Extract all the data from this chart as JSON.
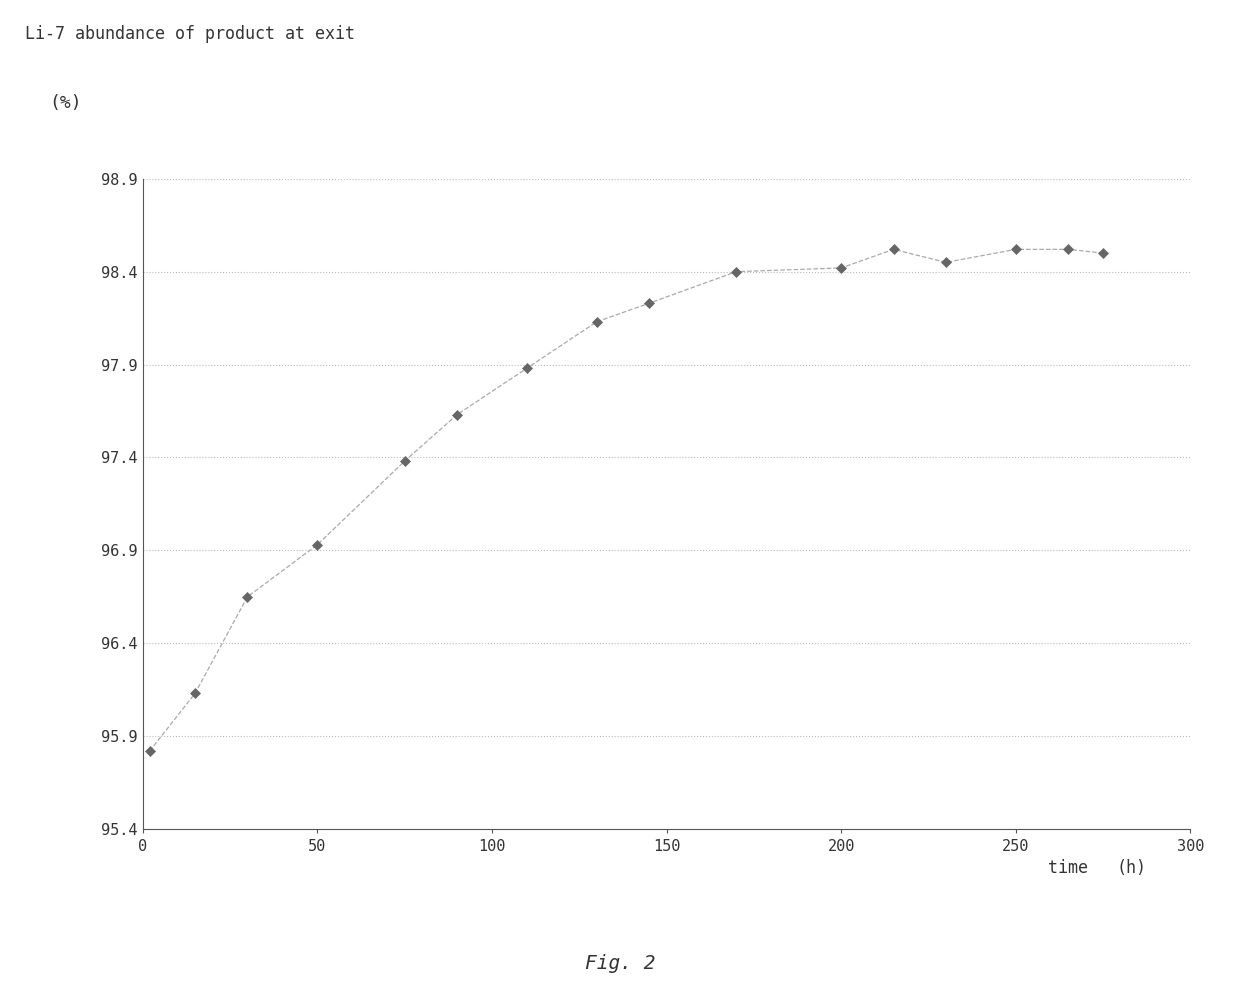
{
  "title": "Li-7 abundance of product at exit",
  "ylabel": "(%)",
  "xlabel_part1": "time",
  "xlabel_part2": "(h)",
  "x_data": [
    2,
    15,
    30,
    50,
    75,
    90,
    110,
    130,
    145,
    170,
    200,
    215,
    230,
    250,
    265,
    275
  ],
  "y_data": [
    95.82,
    96.13,
    96.65,
    96.93,
    97.38,
    97.63,
    97.88,
    98.13,
    98.23,
    98.4,
    98.42,
    98.52,
    98.45,
    98.52,
    98.52,
    98.5
  ],
  "xlim": [
    0,
    300
  ],
  "ylim": [
    95.4,
    98.9
  ],
  "yticks": [
    95.4,
    95.9,
    96.4,
    96.9,
    97.4,
    97.9,
    98.4,
    98.9
  ],
  "xticks": [
    0,
    50,
    100,
    150,
    200,
    250,
    300
  ],
  "line_color": "#aaaaaa",
  "marker_color": "#666666",
  "grid_color": "#bbbbbb",
  "bg_color": "#ffffff",
  "title_fontsize": 12,
  "label_fontsize": 12,
  "tick_fontsize": 11,
  "fig_caption": "Fig. 2"
}
